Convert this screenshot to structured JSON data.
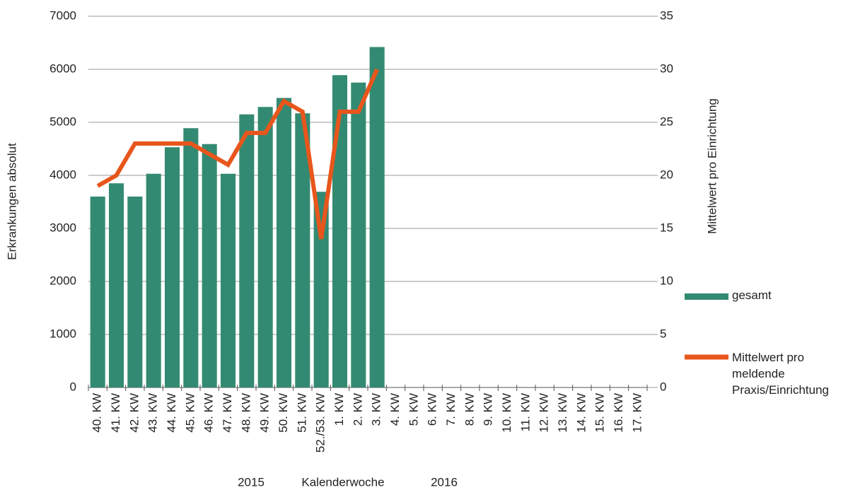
{
  "chart_data": {
    "type": "bar",
    "categories": [
      "40. KW",
      "41. KW",
      "42. KW",
      "43. KW",
      "44. KW",
      "45. KW",
      "46. KW",
      "47. KW",
      "48. KW",
      "49. KW",
      "50. KW",
      "51. KW",
      "52./53. KW",
      "1. KW",
      "2. KW",
      "3. KW",
      "4. KW",
      "5. KW",
      "6. KW",
      "7. KW",
      "8. KW",
      "9. KW",
      "10. KW",
      "11. KW",
      "12. KW",
      "13. KW",
      "14. KW",
      "15. KW",
      "16. KW",
      "17. KW"
    ],
    "series": [
      {
        "name": "gesamt",
        "type": "bar",
        "color": "#338a72",
        "values": [
          3600,
          3850,
          3600,
          4030,
          4530,
          4890,
          4590,
          4030,
          5150,
          5290,
          5460,
          5170,
          3690,
          5890,
          5750,
          6420,
          null,
          null,
          null,
          null,
          null,
          null,
          null,
          null,
          null,
          null,
          null,
          null,
          null,
          null
        ]
      },
      {
        "name": "Mittelwert pro meldende Praxis/Einrichtung",
        "type": "line",
        "axis": "y2",
        "color": "#e8561c",
        "values": [
          19,
          20,
          23,
          23,
          23,
          23,
          22,
          21,
          24,
          24,
          27,
          26,
          14,
          26,
          26,
          30,
          null,
          null,
          null,
          null,
          null,
          null,
          null,
          null,
          null,
          null,
          null,
          null,
          null,
          null
        ]
      }
    ],
    "ylabel": "Erkrankungen absolut",
    "y2label": "Mittelwert pro Einrichtung",
    "xlabel": "Kalenderwoche",
    "annotations": [
      "2015",
      "2016"
    ],
    "ylim": [
      0,
      7000
    ],
    "yticks": [
      0,
      1000,
      2000,
      3000,
      4000,
      5000,
      6000,
      7000
    ],
    "y2lim": [
      0,
      35
    ],
    "y2ticks": [
      0,
      5,
      10,
      15,
      20,
      25,
      30,
      35
    ],
    "grid": true
  }
}
